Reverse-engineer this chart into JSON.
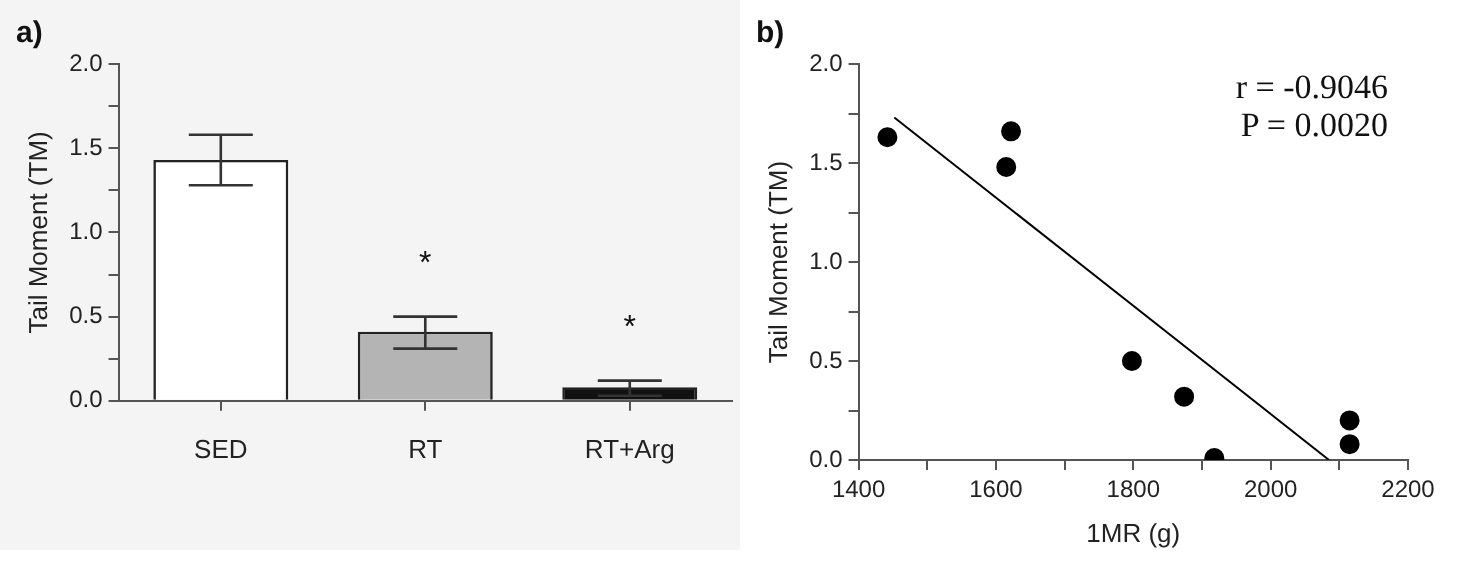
{
  "chart_data": [
    {
      "type": "bar",
      "title": "a)",
      "ylabel": "Tail Moment (TM)",
      "categories": [
        "SED",
        "RT",
        "RT+Arg"
      ],
      "values": [
        1.43,
        0.41,
        0.08
      ],
      "colors": [
        "#ffffff",
        "#b4b4b4",
        "#111111"
      ],
      "errors": [
        [
          1.28,
          1.58
        ],
        [
          0.31,
          0.5
        ],
        [
          0.03,
          0.12
        ]
      ],
      "ylim": [
        0,
        2
      ],
      "yticks": [
        {
          "value": 0,
          "label": "0.0"
        },
        {
          "value": 0.25,
          "label": null
        },
        {
          "value": 0.5,
          "label": "0.5"
        },
        {
          "value": 0.75,
          "label": null
        },
        {
          "value": 1,
          "label": "1.0"
        },
        {
          "value": 1.25,
          "label": null
        },
        {
          "value": 1.5,
          "label": "1.5"
        },
        {
          "value": 1.75,
          "label": null
        },
        {
          "value": 2,
          "label": "2.0"
        }
      ],
      "annotations": [
        "*",
        "*"
      ]
    },
    {
      "type": "scatter",
      "title": "b)",
      "xlabel": "1MR (g)",
      "ylabel": "Tail Moment (TM)",
      "series": [
        {
          "type": "scatter",
          "marker": "circle",
          "color": "#000000",
          "x": [
            1442,
            1615,
            1622,
            1798,
            1874,
            1918,
            2115,
            2115
          ],
          "values": [
            1.63,
            1.48,
            1.66,
            0.5,
            0.32,
            0.01,
            0.2,
            0.08
          ]
        },
        {
          "type": "line",
          "color": "#000000",
          "x": [
            1452,
            2085
          ],
          "values": [
            1.73,
            0
          ]
        }
      ],
      "xlim": [
        1400,
        2200
      ],
      "xticks": [
        1400,
        {
          "value": 1500,
          "label": null
        },
        1600,
        {
          "value": 1700,
          "label": null
        },
        1800,
        {
          "value": 1900,
          "label": null
        },
        2000,
        {
          "value": 2100,
          "label": null
        },
        2200
      ],
      "ylim": [
        0,
        2
      ],
      "yticks": [
        {
          "value": 0,
          "label": "0.0"
        },
        {
          "value": 0.25,
          "label": null
        },
        {
          "value": 0.5,
          "label": "0.5"
        },
        {
          "value": 0.75,
          "label": null
        },
        {
          "value": 1,
          "label": "1.0"
        },
        {
          "value": 1.25,
          "label": null
        },
        {
          "value": 1.5,
          "label": "1.5"
        },
        {
          "value": 1.75,
          "label": null
        },
        {
          "value": 2,
          "label": "2.0"
        }
      ],
      "annotations": [
        "r = -0.9046",
        "P = 0.0020"
      ]
    }
  ]
}
